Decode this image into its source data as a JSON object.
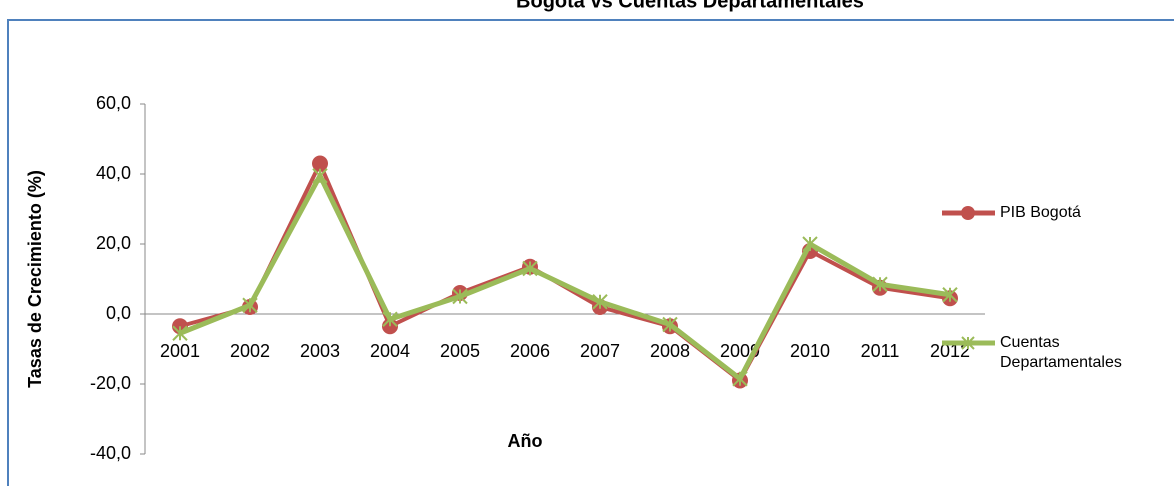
{
  "chart_data": {
    "type": "line",
    "title": "Bogotá vs Cuentas Departamentales",
    "x_label": "Año",
    "y_label": "Tasas de Crecimiento (%)",
    "categories": [
      "2001",
      "2002",
      "2003",
      "2004",
      "2005",
      "2006",
      "2007",
      "2008",
      "2009",
      "2010",
      "2011",
      "2012"
    ],
    "series": [
      {
        "name": "PIB Bogotá",
        "color": "#c0504d",
        "marker": "circle",
        "values": [
          -3.5,
          2,
          43,
          -3.5,
          6,
          13.5,
          2,
          -3.5,
          -19,
          18,
          7.5,
          4.5
        ]
      },
      {
        "name": "Cuentas Departamentales",
        "color": "#9bbb59",
        "marker": "star",
        "values": [
          -5.5,
          2.5,
          39.5,
          -1.5,
          5,
          13,
          3.5,
          -3,
          -18.5,
          20,
          8.5,
          5.5
        ]
      }
    ],
    "ylim": [
      -40,
      60
    ],
    "yticks": [
      {
        "value": -40,
        "label": "-40,0"
      },
      {
        "value": -20,
        "label": "-20,0"
      },
      {
        "value": 0,
        "label": "0,0"
      },
      {
        "value": 20,
        "label": "20,0"
      },
      {
        "value": 40,
        "label": "40,0"
      },
      {
        "value": 60,
        "label": "60,0"
      }
    ],
    "legend": "right"
  }
}
